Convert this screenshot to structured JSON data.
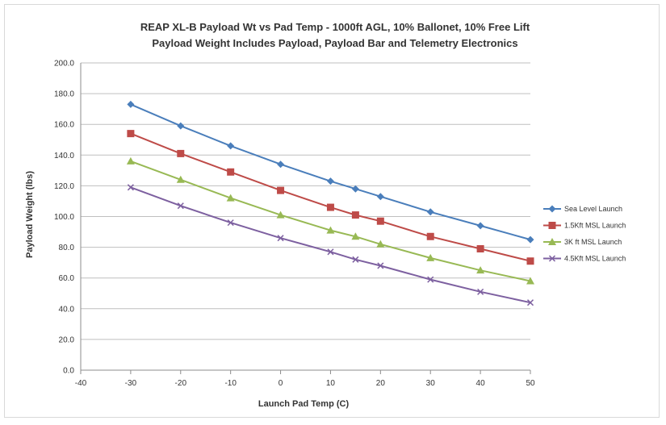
{
  "chart_data": {
    "type": "line",
    "title": "REAP XL-B Payload Wt vs Pad Temp - 1000ft AGL, 10% Ballonet, 10% Free Lift",
    "subtitle": "Payload Weight Includes Payload, Payload Bar and Telemetry Electronics",
    "xlabel": "Launch Pad Temp (C)",
    "ylabel": "Payload Weight (lbs)",
    "xlim": [
      -40,
      50
    ],
    "ylim": [
      0,
      200
    ],
    "x_ticks": [
      "-40",
      "-30",
      "-20",
      "-10",
      "0",
      "10",
      "20",
      "30",
      "40",
      "50"
    ],
    "y_ticks": [
      "0.0",
      "20.0",
      "40.0",
      "60.0",
      "80.0",
      "100.0",
      "120.0",
      "140.0",
      "160.0",
      "180.0",
      "200.0"
    ],
    "grid": "horizontal",
    "legend_position": "right",
    "x": [
      -30,
      -20,
      -10,
      0,
      10,
      15,
      20,
      30,
      40,
      50
    ],
    "series": [
      {
        "name": "Sea Level Launch",
        "color": "#4a7ebb",
        "marker": "diamond",
        "values": [
          173,
          159,
          146,
          134,
          123,
          118,
          113,
          103,
          94,
          85
        ]
      },
      {
        "name": "1.5Kft MSL Launch",
        "color": "#be4b48",
        "marker": "square",
        "values": [
          154,
          141,
          129,
          117,
          106,
          101,
          97,
          87,
          79,
          71
        ]
      },
      {
        "name": "3K ft MSL Launch",
        "color": "#98b954",
        "marker": "triangle",
        "values": [
          136,
          124,
          112,
          101,
          91,
          87,
          82,
          73,
          65,
          58
        ]
      },
      {
        "name": "4.5Kft MSL Launch",
        "color": "#7d60a0",
        "marker": "x",
        "values": [
          119,
          107,
          96,
          86,
          77,
          72,
          68,
          59,
          51,
          44
        ]
      }
    ]
  }
}
